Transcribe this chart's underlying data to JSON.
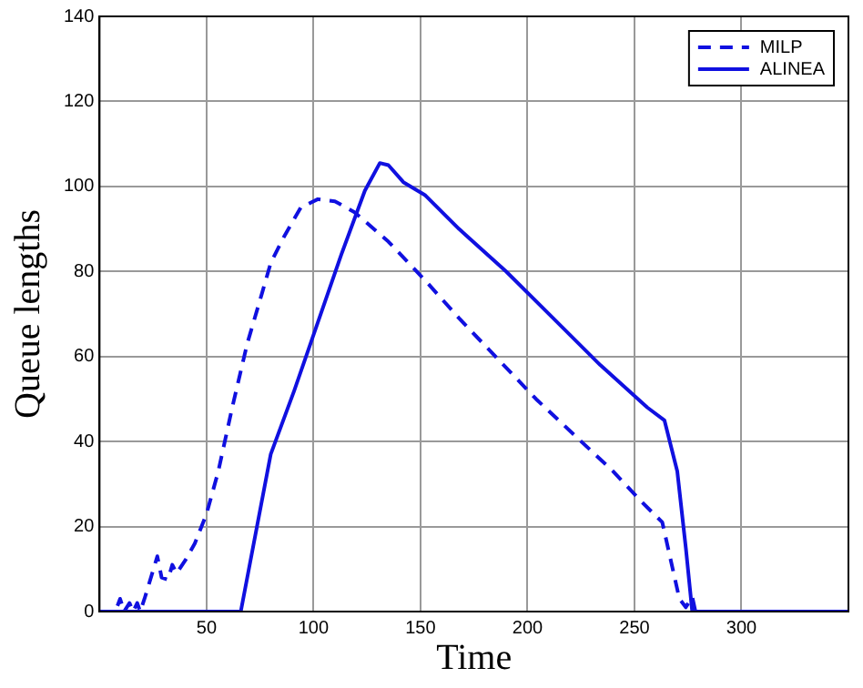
{
  "chart_data": {
    "type": "line",
    "xlabel": "Time",
    "ylabel": "Queue lengths",
    "xlim": [
      0,
      350
    ],
    "ylim": [
      0,
      140
    ],
    "xticks": [
      50,
      100,
      150,
      200,
      250,
      300
    ],
    "yticks": [
      0,
      20,
      40,
      60,
      80,
      100,
      120,
      140
    ],
    "grid": true,
    "legend": "top right",
    "marker": "none",
    "series": [
      {
        "name": "MILP",
        "color": "#1010e0",
        "line_style": "dashed",
        "x": [
          0,
          7.4,
          9.6,
          11.5,
          14,
          15.7,
          17.6,
          19,
          21,
          27,
          29,
          32,
          34,
          36,
          40,
          44.5,
          50,
          55.5,
          62,
          69,
          76,
          80,
          86,
          94,
          102,
          110,
          119,
          135,
          152,
          168,
          185,
          204,
          223,
          240,
          253,
          263,
          267,
          271,
          274,
          277,
          278.5,
          350
        ],
        "values": [
          0,
          0,
          3,
          0,
          2,
          0,
          2,
          0,
          3,
          13,
          8,
          7.5,
          11,
          9,
          12,
          16,
          23,
          33,
          48,
          63,
          75,
          82,
          88,
          95,
          97,
          96.5,
          94,
          87,
          78,
          69,
          60,
          50,
          41,
          33,
          26,
          21,
          12,
          3,
          1,
          3.5,
          0,
          0
        ]
      },
      {
        "name": "ALINEA",
        "color": "#1010e0",
        "line_style": "solid",
        "x": [
          0,
          66,
          80,
          91,
          102,
          113,
          124,
          131,
          135,
          142,
          152,
          168,
          190,
          212,
          234,
          256,
          264,
          270,
          274,
          277,
          350
        ],
        "values": [
          0,
          0,
          37,
          52,
          68,
          84,
          99,
          105.5,
          105,
          101,
          98,
          90,
          80,
          69,
          58,
          48,
          45,
          33,
          15,
          0,
          0
        ]
      }
    ]
  }
}
